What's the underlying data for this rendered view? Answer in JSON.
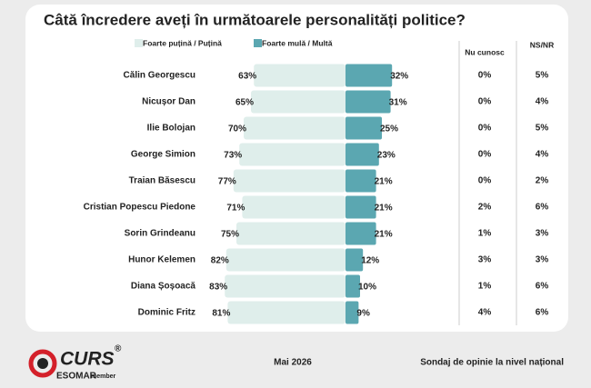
{
  "chart_data": {
    "type": "diverging-bar",
    "title": "Câtă încredere aveți în următoarele personalități politice?",
    "categories": [
      "Călin Georgescu",
      "Nicușor Dan",
      "Ilie Bolojan",
      "George Simion",
      "Traian Băsescu",
      "Cristian Popescu Piedone",
      "Sorin Grindeanu",
      "Hunor Kelemen",
      "Diana Șoșoacă",
      "Dominic Fritz"
    ],
    "series": [
      {
        "name": "Foarte puțină / Puțină",
        "color": "#dfeeeb",
        "values": [
          63,
          65,
          70,
          73,
          77,
          71,
          75,
          82,
          83,
          81
        ],
        "value_labels": [
          "63%",
          "65%",
          "70%",
          "73%",
          "77%",
          "71%",
          "75%",
          "82%",
          "83%",
          "81%"
        ]
      },
      {
        "name": "Foarte mulă / Multă",
        "color": "#5ba7b1",
        "values": [
          32,
          31,
          25,
          23,
          21,
          21,
          21,
          12,
          10,
          9
        ],
        "value_labels": [
          "32%",
          "31%",
          "25%",
          "23%",
          "21%",
          "21%",
          "21%",
          "12%",
          "10%",
          "9%"
        ]
      },
      {
        "name": "Nu cunosc",
        "values": [
          0,
          0,
          0,
          0,
          0,
          2,
          1,
          3,
          1,
          4
        ],
        "value_labels": [
          "0%",
          "0%",
          "0%",
          "0%",
          "0%",
          "2%",
          "1%",
          "3%",
          "1%",
          "4%"
        ]
      },
      {
        "name": "NS/NR",
        "values": [
          5,
          4,
          5,
          4,
          2,
          6,
          3,
          3,
          6,
          6
        ],
        "value_labels": [
          "5%",
          "4%",
          "5%",
          "4%",
          "2%",
          "6%",
          "3%",
          "3%",
          "6%",
          "6%"
        ]
      }
    ]
  },
  "footer": {
    "logo": "CURS",
    "registered": "®",
    "org": "ESOMAR",
    "member": "member",
    "date": "Mai 2026",
    "source": "Sondaj de opinie la nivel național"
  }
}
